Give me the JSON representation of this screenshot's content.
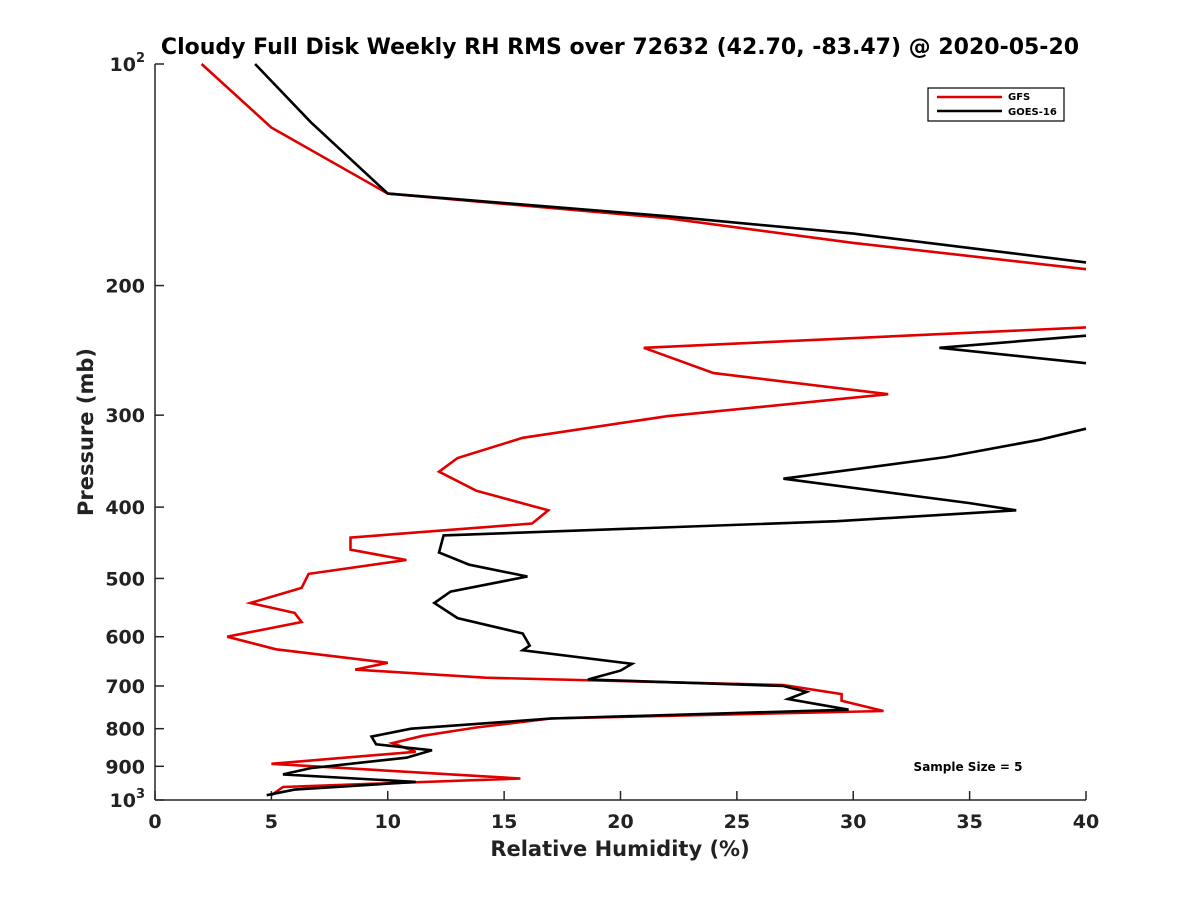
{
  "chart_data": {
    "type": "line",
    "title": "Cloudy Full Disk Weekly RH RMS over 72632 (42.70, -83.47) @ 2020-05-20",
    "xlabel": "Relative Humidity (%)",
    "ylabel": "Pressure (mb)",
    "xlim": [
      0,
      40
    ],
    "ylim": [
      100,
      1000
    ],
    "y_scale": "log",
    "y_reversed": true,
    "grid": false,
    "legend_position": "top-right",
    "x_ticks": [
      "0",
      "5",
      "10",
      "15",
      "20",
      "25",
      "30",
      "35",
      "40"
    ],
    "y_ticks": [
      {
        "value": 100,
        "base": "10",
        "exp": "2"
      },
      {
        "value": 200,
        "label": "200"
      },
      {
        "value": 300,
        "label": "300"
      },
      {
        "value": 400,
        "label": "400"
      },
      {
        "value": 500,
        "label": "500"
      },
      {
        "value": 600,
        "label": "600"
      },
      {
        "value": 700,
        "label": "700"
      },
      {
        "value": 800,
        "label": "800"
      },
      {
        "value": 900,
        "label": "900"
      },
      {
        "value": 1000,
        "base": "10",
        "exp": "3"
      }
    ],
    "annotation": "Sample Size = 5",
    "series": [
      {
        "name": "GFS",
        "color": "#e00000",
        "points": [
          [
            2.0,
            100
          ],
          [
            5.0,
            122
          ],
          [
            10.0,
            150
          ],
          [
            22.0,
            162
          ],
          [
            30.0,
            175
          ],
          [
            40.0,
            190
          ],
          [
            null,
            null
          ],
          [
            40.0,
            228
          ],
          [
            21.0,
            243
          ],
          [
            24.0,
            263
          ],
          [
            31.5,
            281
          ],
          [
            22.0,
            301
          ],
          [
            15.8,
            322
          ],
          [
            13.0,
            343
          ],
          [
            12.2,
            358
          ],
          [
            13.8,
            380
          ],
          [
            16.9,
            404
          ],
          [
            16.2,
            421
          ],
          [
            8.4,
            440
          ],
          [
            8.4,
            457
          ],
          [
            10.8,
            472
          ],
          [
            6.6,
            493
          ],
          [
            6.3,
            515
          ],
          [
            4.1,
            540
          ],
          [
            6.0,
            557
          ],
          [
            6.3,
            573
          ],
          [
            3.1,
            600
          ],
          [
            5.2,
            624
          ],
          [
            10.0,
            651
          ],
          [
            8.6,
            665
          ],
          [
            14.2,
            682
          ],
          [
            27.0,
            698
          ],
          [
            29.5,
            718
          ],
          [
            29.5,
            733
          ],
          [
            31.3,
            757
          ],
          [
            17.0,
            775
          ],
          [
            13.8,
            797
          ],
          [
            11.5,
            818
          ],
          [
            10.2,
            837
          ],
          [
            11.2,
            860
          ],
          [
            5.0,
            893
          ],
          [
            15.7,
            935
          ],
          [
            5.5,
            960
          ],
          [
            5.0,
            985
          ]
        ]
      },
      {
        "name": "GOES-16",
        "color": "#000000",
        "points": [
          [
            4.3,
            100
          ],
          [
            6.7,
            120
          ],
          [
            10.0,
            150
          ],
          [
            22.0,
            161
          ],
          [
            30.0,
            170
          ],
          [
            40.0,
            186
          ],
          [
            null,
            null
          ],
          [
            40.0,
            234
          ],
          [
            33.7,
            243
          ],
          [
            40.0,
            255
          ],
          [
            null,
            null
          ],
          [
            40.0,
            313
          ],
          [
            38.0,
            324
          ],
          [
            34.0,
            342
          ],
          [
            27.0,
            366
          ],
          [
            35.0,
            395
          ],
          [
            37.0,
            404
          ],
          [
            29.3,
            418
          ],
          [
            12.4,
            437
          ],
          [
            12.2,
            461
          ],
          [
            13.5,
            479
          ],
          [
            16.0,
            497
          ],
          [
            12.7,
            521
          ],
          [
            12.0,
            540
          ],
          [
            13.0,
            566
          ],
          [
            15.8,
            594
          ],
          [
            16.1,
            617
          ],
          [
            15.8,
            626
          ],
          [
            20.5,
            653
          ],
          [
            20.0,
            667
          ],
          [
            18.6,
            686
          ],
          [
            27.0,
            700
          ],
          [
            28.0,
            713
          ],
          [
            27.2,
            729
          ],
          [
            29.8,
            754
          ],
          [
            17.0,
            775
          ],
          [
            11.0,
            800
          ],
          [
            9.3,
            820
          ],
          [
            9.5,
            840
          ],
          [
            11.9,
            856
          ],
          [
            10.8,
            876
          ],
          [
            6.7,
            905
          ],
          [
            5.5,
            923
          ],
          [
            11.2,
            945
          ],
          [
            6.0,
            968
          ],
          [
            4.8,
            985
          ]
        ]
      }
    ]
  }
}
